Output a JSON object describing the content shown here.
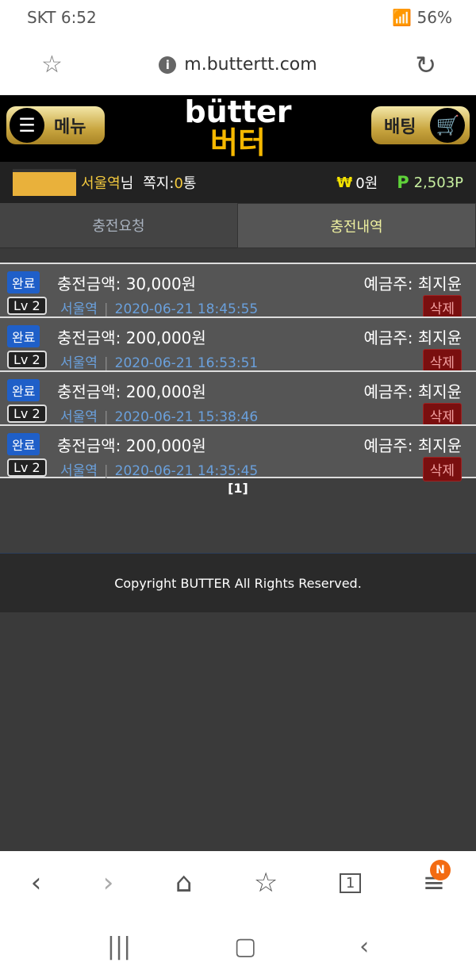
{
  "status": {
    "carrier": "SKT",
    "time": "6:52",
    "battery": "56%"
  },
  "browser": {
    "url": "m.buttertt.com"
  },
  "header": {
    "menu_label": "메뉴",
    "logo_en": "bütter",
    "logo_ko": "버터",
    "bet_label": "배팅"
  },
  "user": {
    "name": "서울역",
    "suffix": "님",
    "msg_label": "쪽지:",
    "msg_count": "0",
    "msg_unit": "통",
    "won_symbol": "₩",
    "money": "0원",
    "point_symbol": "P",
    "points": "2,503P"
  },
  "tabs": [
    {
      "label": "충전요청"
    },
    {
      "label": "충전내역",
      "active": true
    }
  ],
  "records": [
    {
      "status": "완료",
      "amount": "충전금액: 30,000원",
      "depositor": "예금주: 최지윤",
      "level": "Lv 2",
      "user": "서울역",
      "datetime": "2020-06-21 18:45:55",
      "delete": "삭제"
    },
    {
      "status": "완료",
      "amount": "충전금액: 200,000원",
      "depositor": "예금주: 최지윤",
      "level": "Lv 2",
      "user": "서울역",
      "datetime": "2020-06-21 16:53:51",
      "delete": "삭제"
    },
    {
      "status": "완료",
      "amount": "충전금액: 200,000원",
      "depositor": "예금주: 최지윤",
      "level": "Lv 2",
      "user": "서울역",
      "datetime": "2020-06-21 15:38:46",
      "delete": "삭제"
    },
    {
      "status": "완료",
      "amount": "충전금액: 200,000원",
      "depositor": "예금주: 최지윤",
      "level": "Lv 2",
      "user": "서울역",
      "datetime": "2020-06-21 14:35:45",
      "delete": "삭제"
    }
  ],
  "pager": "[1]",
  "footer": "Copyright BUTTER All Rights Reserved.",
  "bottom_nav": {
    "badge": "N",
    "tabs_count": "1"
  }
}
